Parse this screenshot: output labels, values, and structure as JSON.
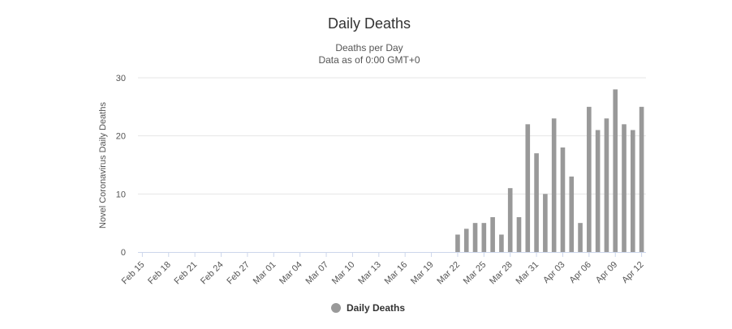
{
  "chart_data": {
    "type": "bar",
    "title": "Daily Deaths",
    "subtitle_lines": [
      "Deaths per Day",
      "Data as of 0:00 GMT+0"
    ],
    "ylabel": "Novel Coronavirus Daily Deaths",
    "xlabel": "",
    "ylim": [
      0,
      30
    ],
    "yticks": [
      0,
      10,
      20,
      30
    ],
    "grid": true,
    "legend_position": "bottom-center",
    "x_tick_labels": [
      "Feb 15",
      "Feb 18",
      "Feb 21",
      "Feb 24",
      "Feb 27",
      "Mar 01",
      "Mar 04",
      "Mar 07",
      "Mar 10",
      "Mar 13",
      "Mar 16",
      "Mar 19",
      "Mar 22",
      "Mar 25",
      "Mar 28",
      "Mar 31",
      "Apr 03",
      "Apr 06",
      "Apr 09",
      "Apr 12"
    ],
    "categories": [
      "Feb 15",
      "Feb 16",
      "Feb 17",
      "Feb 18",
      "Feb 19",
      "Feb 20",
      "Feb 21",
      "Feb 22",
      "Feb 23",
      "Feb 24",
      "Feb 25",
      "Feb 26",
      "Feb 27",
      "Feb 28",
      "Feb 29",
      "Mar 01",
      "Mar 02",
      "Mar 03",
      "Mar 04",
      "Mar 05",
      "Mar 06",
      "Mar 07",
      "Mar 08",
      "Mar 09",
      "Mar 10",
      "Mar 11",
      "Mar 12",
      "Mar 13",
      "Mar 14",
      "Mar 15",
      "Mar 16",
      "Mar 17",
      "Mar 18",
      "Mar 19",
      "Mar 20",
      "Mar 21",
      "Mar 22",
      "Mar 23",
      "Mar 24",
      "Mar 25",
      "Mar 26",
      "Mar 27",
      "Mar 28",
      "Mar 29",
      "Mar 30",
      "Mar 31",
      "Apr 01",
      "Apr 02",
      "Apr 03",
      "Apr 04",
      "Apr 05",
      "Apr 06",
      "Apr 07",
      "Apr 08",
      "Apr 09",
      "Apr 10",
      "Apr 11",
      "Apr 12"
    ],
    "series": [
      {
        "name": "Daily Deaths",
        "color": "#999999",
        "values": [
          0,
          0,
          0,
          0,
          0,
          0,
          0,
          0,
          0,
          0,
          0,
          0,
          0,
          0,
          0,
          0,
          0,
          0,
          0,
          0,
          0,
          0,
          0,
          0,
          0,
          0,
          0,
          0,
          0,
          0,
          0,
          0,
          0,
          0,
          0,
          0,
          3,
          4,
          5,
          5,
          6,
          3,
          11,
          6,
          22,
          17,
          10,
          23,
          18,
          13,
          5,
          25,
          21,
          23,
          28,
          22,
          21,
          25
        ]
      }
    ],
    "colors": {
      "grid": "#e6e6e6",
      "axis": "#ccd6eb",
      "bar": "#999999"
    }
  }
}
